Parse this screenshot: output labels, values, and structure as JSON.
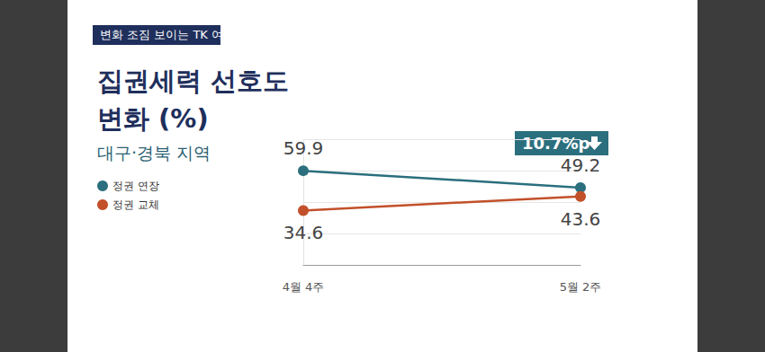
{
  "chart_data": {
    "type": "line",
    "title": "집권세력 선호도\n변화 (%)",
    "subtitle": "대구·경북 지역",
    "annotations": [
      "변화 조짐 보이는 TK 여론",
      "10.7%p"
    ],
    "categories": [
      "4월 4주",
      "5월 2주"
    ],
    "series": [
      {
        "name": "정권 연장",
        "color": "#2b6f7e",
        "values": [
          59.9,
          49.2
        ],
        "marker": "circle"
      },
      {
        "name": "정권 교체",
        "color": "#c2502a",
        "values": [
          34.6,
          43.6
        ],
        "marker": "circle"
      }
    ],
    "ylim": [
      0,
      80
    ],
    "yticks": [
      0,
      20,
      40,
      60,
      80
    ],
    "grid": true,
    "legend": "left",
    "data_labels": true,
    "tick_labels": "x"
  }
}
